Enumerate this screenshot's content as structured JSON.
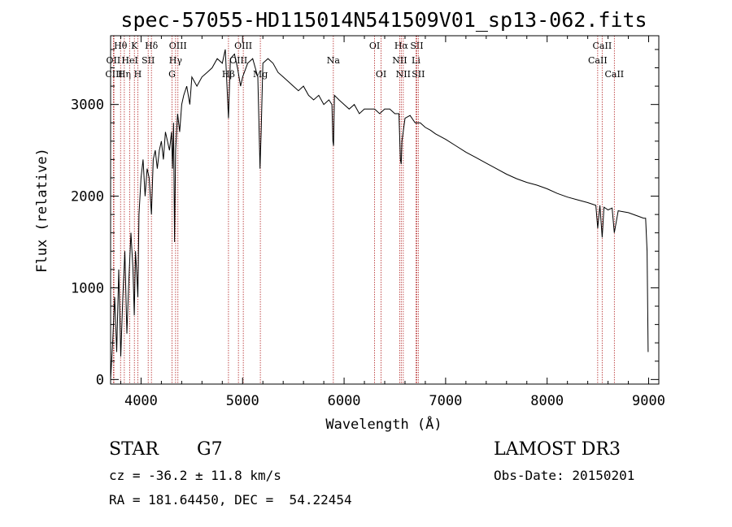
{
  "chart_data": {
    "type": "line",
    "title": "spec-57055-HD115014N541509V01_sp13-062.fits",
    "xlabel": "Wavelength (Å)",
    "ylabel": "Flux (relative)",
    "xlim": [
      3700,
      9100
    ],
    "ylim": [
      -50,
      3750
    ],
    "xticks": [
      4000,
      5000,
      6000,
      7000,
      8000,
      9000
    ],
    "yticks": [
      0,
      1000,
      2000,
      3000
    ],
    "series": [
      {
        "name": "spectrum",
        "x": [
          3700,
          3720,
          3740,
          3760,
          3780,
          3800,
          3820,
          3840,
          3860,
          3880,
          3900,
          3920,
          3933,
          3945,
          3960,
          3968,
          3980,
          4000,
          4020,
          4040,
          4060,
          4080,
          4102,
          4120,
          4140,
          4160,
          4180,
          4200,
          4220,
          4240,
          4260,
          4280,
          4300,
          4310,
          4320,
          4330,
          4340,
          4350,
          4360,
          4380,
          4400,
          4420,
          4450,
          4480,
          4500,
          4550,
          4600,
          4650,
          4700,
          4750,
          4800,
          4830,
          4861,
          4880,
          4920,
          4950,
          4980,
          5000,
          5050,
          5100,
          5150,
          5172,
          5183,
          5200,
          5250,
          5300,
          5350,
          5400,
          5450,
          5500,
          5550,
          5600,
          5650,
          5700,
          5750,
          5800,
          5850,
          5880,
          5890,
          5896,
          5905,
          5950,
          6000,
          6050,
          6100,
          6150,
          6200,
          6250,
          6300,
          6350,
          6400,
          6450,
          6500,
          6540,
          6555,
          6563,
          6570,
          6600,
          6650,
          6700,
          6750,
          6800,
          6850,
          6900,
          6950,
          7000,
          7100,
          7200,
          7300,
          7400,
          7500,
          7600,
          7700,
          7800,
          7900,
          8000,
          8100,
          8200,
          8300,
          8400,
          8480,
          8498,
          8520,
          8542,
          8560,
          8600,
          8640,
          8662,
          8700,
          8750,
          8800,
          8850,
          8900,
          8950,
          8970,
          8985,
          8995
        ],
        "values": [
          0,
          400,
          900,
          300,
          1200,
          250,
          900,
          1400,
          500,
          1100,
          1600,
          1200,
          700,
          1400,
          1100,
          900,
          1800,
          2200,
          2400,
          2000,
          2300,
          2200,
          1800,
          2400,
          2500,
          2300,
          2500,
          2600,
          2400,
          2700,
          2600,
          2500,
          2700,
          2300,
          2800,
          1500,
          2500,
          2700,
          2900,
          2700,
          3000,
          3100,
          3200,
          3000,
          3300,
          3200,
          3300,
          3350,
          3400,
          3500,
          3450,
          3600,
          2850,
          3500,
          3550,
          3400,
          3200,
          3300,
          3450,
          3500,
          3300,
          2300,
          2700,
          3450,
          3500,
          3450,
          3350,
          3300,
          3250,
          3200,
          3150,
          3200,
          3100,
          3050,
          3100,
          3000,
          3050,
          3000,
          2600,
          2550,
          3100,
          3050,
          3000,
          2950,
          3000,
          2900,
          2950,
          2950,
          2950,
          2900,
          2950,
          2950,
          2900,
          2900,
          2400,
          2350,
          2600,
          2850,
          2880,
          2800,
          2800,
          2750,
          2720,
          2680,
          2650,
          2620,
          2550,
          2480,
          2420,
          2360,
          2300,
          2240,
          2190,
          2150,
          2120,
          2080,
          2030,
          1990,
          1960,
          1930,
          1900,
          1650,
          1900,
          1550,
          1880,
          1850,
          1870,
          1600,
          1840,
          1830,
          1820,
          1800,
          1780,
          1760,
          1760,
          1400,
          300
        ]
      }
    ],
    "line_markers": [
      {
        "label": "Hθ",
        "wl": 3798,
        "row": 0
      },
      {
        "label": "OII",
        "wl": 3727,
        "row": 1
      },
      {
        "label": "CIII",
        "wl": 3733,
        "row": 2
      },
      {
        "label": "Hη",
        "wl": 3835,
        "row": 2
      },
      {
        "label": "HeI",
        "wl": 3889,
        "row": 1
      },
      {
        "label": "K",
        "wl": 3934,
        "row": 0
      },
      {
        "label": "H",
        "wl": 3968,
        "row": 2
      },
      {
        "label": "Hδ",
        "wl": 4102,
        "row": 0
      },
      {
        "label": "SII",
        "wl": 4070,
        "row": 1
      },
      {
        "label": "OIII",
        "wl": 4363,
        "row": 0
      },
      {
        "label": "Hγ",
        "wl": 4340,
        "row": 1
      },
      {
        "label": "G",
        "wl": 4305,
        "row": 2
      },
      {
        "label": "Hβ",
        "wl": 4861,
        "row": 2
      },
      {
        "label": "OIII",
        "wl": 5007,
        "row": 0
      },
      {
        "label": "OIII",
        "wl": 4959,
        "row": 1
      },
      {
        "label": "Mg",
        "wl": 5175,
        "row": 2
      },
      {
        "label": "Na",
        "wl": 5894,
        "row": 1
      },
      {
        "label": "OI",
        "wl": 6300,
        "row": 0
      },
      {
        "label": "OI",
        "wl": 6364,
        "row": 2
      },
      {
        "label": "Hα",
        "wl": 6563,
        "row": 0
      },
      {
        "label": "NII",
        "wl": 6548,
        "row": 1
      },
      {
        "label": "NII",
        "wl": 6583,
        "row": 2
      },
      {
        "label": "SII",
        "wl": 6716,
        "row": 0
      },
      {
        "label": "Li",
        "wl": 6708,
        "row": 1
      },
      {
        "label": "SII",
        "wl": 6731,
        "row": 2
      },
      {
        "label": "CaII",
        "wl": 8542,
        "row": 0
      },
      {
        "label": "CaII",
        "wl": 8498,
        "row": 1
      },
      {
        "label": "CaII",
        "wl": 8662,
        "row": 2
      }
    ]
  },
  "info": {
    "object_class": "STAR",
    "subclass": "G7",
    "survey": "LAMOST DR3",
    "cz": "cz = -36.2 ± 11.8 km/s",
    "obs_date": "Obs-Date: 20150201",
    "coords": "RA = 181.64450, DEC =  54.22454"
  }
}
